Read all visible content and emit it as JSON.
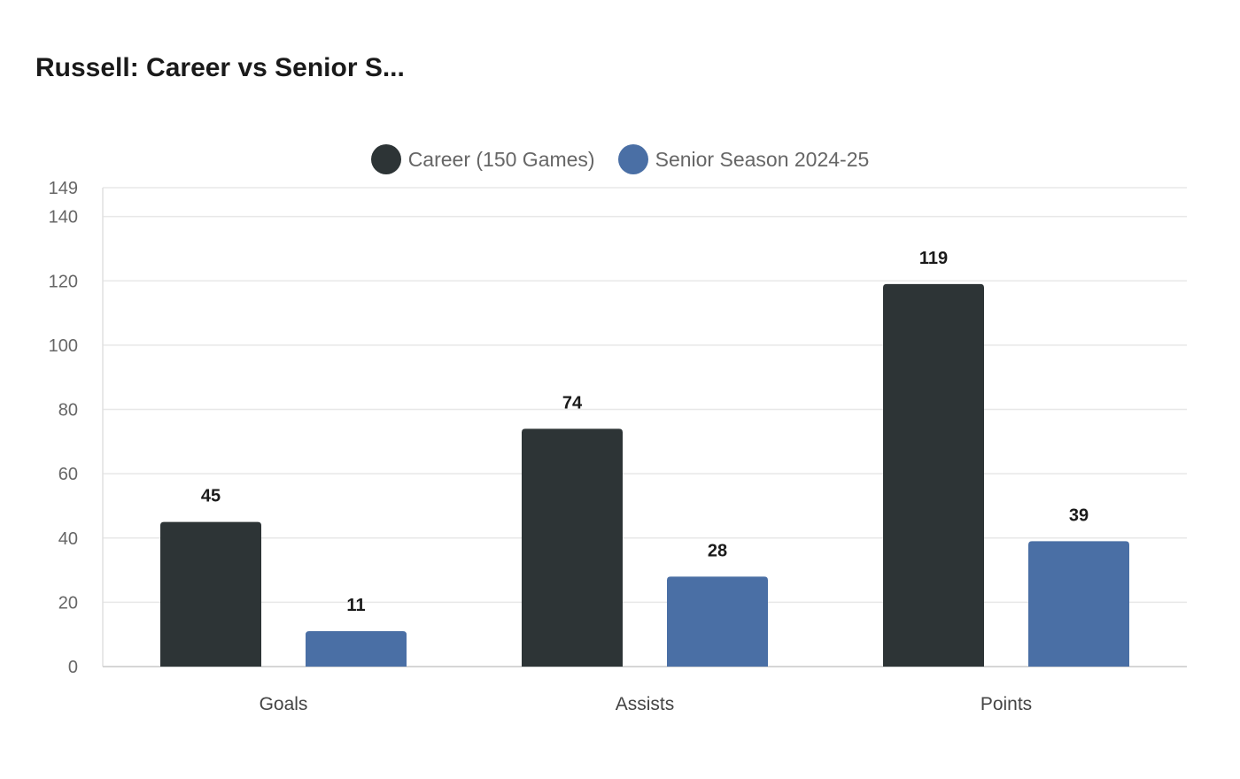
{
  "title": "Russell: Career vs Senior S...",
  "legend": [
    {
      "label": "Career (150 Games)",
      "color": "#2d3436"
    },
    {
      "label": "Senior Season 2024-25",
      "color": "#4a6fa5"
    }
  ],
  "chart_data": {
    "type": "bar",
    "categories": [
      "Goals",
      "Assists",
      "Points"
    ],
    "series": [
      {
        "name": "Career (150 Games)",
        "values": [
          45,
          74,
          119
        ],
        "color": "#2d3436"
      },
      {
        "name": "Senior Season 2024-25",
        "values": [
          11,
          28,
          39
        ],
        "color": "#4a6fa5"
      }
    ],
    "ylim": [
      0,
      149
    ],
    "yticks": [
      0,
      20,
      40,
      60,
      80,
      100,
      120,
      140,
      149
    ],
    "grid": true,
    "legend_position": "top",
    "data_labels": true
  }
}
